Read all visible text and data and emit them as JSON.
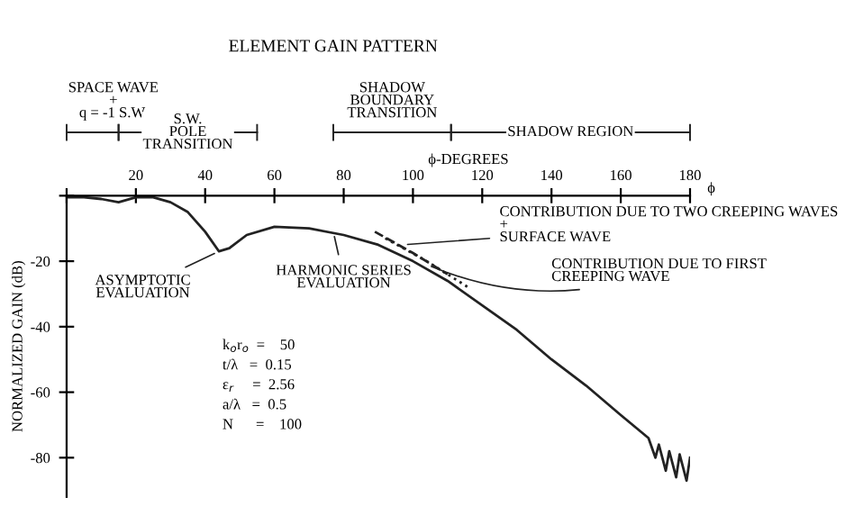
{
  "chart_data": {
    "type": "line",
    "title": "ELEMENT GAIN PATTERN",
    "xlabel": "ϕ-DEGREES",
    "ylabel": "NORMALIZED GAIN (dB)",
    "xlim": [
      0,
      180
    ],
    "xticks": [
      {
        "value": 0,
        "label": null
      },
      20,
      40,
      60,
      80,
      100,
      120,
      140,
      160,
      180
    ],
    "ylim": [
      -92,
      0
    ],
    "yticks": [
      {
        "value": 0,
        "label": null
      },
      -20,
      -40,
      -60,
      -80
    ],
    "series": [
      {
        "x": [
          0,
          5,
          10,
          15,
          20,
          25,
          30,
          35,
          40,
          44,
          47,
          52,
          60,
          70,
          80,
          90,
          100,
          110,
          122,
          130,
          140,
          150,
          160,
          168,
          170,
          171,
          173,
          174,
          176,
          177,
          179,
          180
        ],
        "values": [
          -0.5,
          -0.5,
          -1,
          -2,
          -0.5,
          -0.5,
          -2,
          -5,
          -11,
          -17,
          -16,
          -12,
          -9.5,
          -10,
          -12,
          -15,
          -20,
          -26,
          -35,
          -41,
          -50,
          -58,
          -67,
          -74,
          -80,
          -76,
          -84,
          -78,
          -86,
          -79,
          -87,
          -80
        ],
        "color": "#222222",
        "line_style": "solid"
      },
      {
        "x": [
          89,
          100,
          110
        ],
        "values": [
          -11,
          -17.5,
          -24
        ],
        "color": "#222222",
        "line_style": "dashed"
      },
      {
        "x": [
          92,
          104,
          116
        ],
        "values": [
          -13,
          -20,
          -28
        ],
        "color": "#222222",
        "line_style": "dotted"
      }
    ],
    "annotations": [
      "SPACE WAVE\n+\nq = -1 S.W.",
      "S.W.\nPOLE\nTRANSITION",
      "SHADOW\nBOUNDARY\nTRANSITION",
      "SHADOW REGION",
      {
        "text": "ASYMPTOTIC\nEVALUATION",
        "x": 44,
        "y": -17
      },
      {
        "text": "HARMONIC SERIES\nEVALUATION",
        "x": 77,
        "y": -11
      },
      {
        "text": "CONTRIBUTION DUE TO TWO CREEPING WAVES\n+\nSURFACE WAVE",
        "x": 97,
        "y": -15
      },
      {
        "text": "CONTRIBUTION DUE TO FIRST\nCREEPING WAVE",
        "x": 104,
        "y": -21
      },
      "ϕ",
      "k$_{o}$r$_{o}$  =    50\nt/λ   =  0.15\nε$_{r}$     =  2.56\na/λ   =  0.5\nN      =    100"
    ],
    "grid": false,
    "legend": false
  }
}
